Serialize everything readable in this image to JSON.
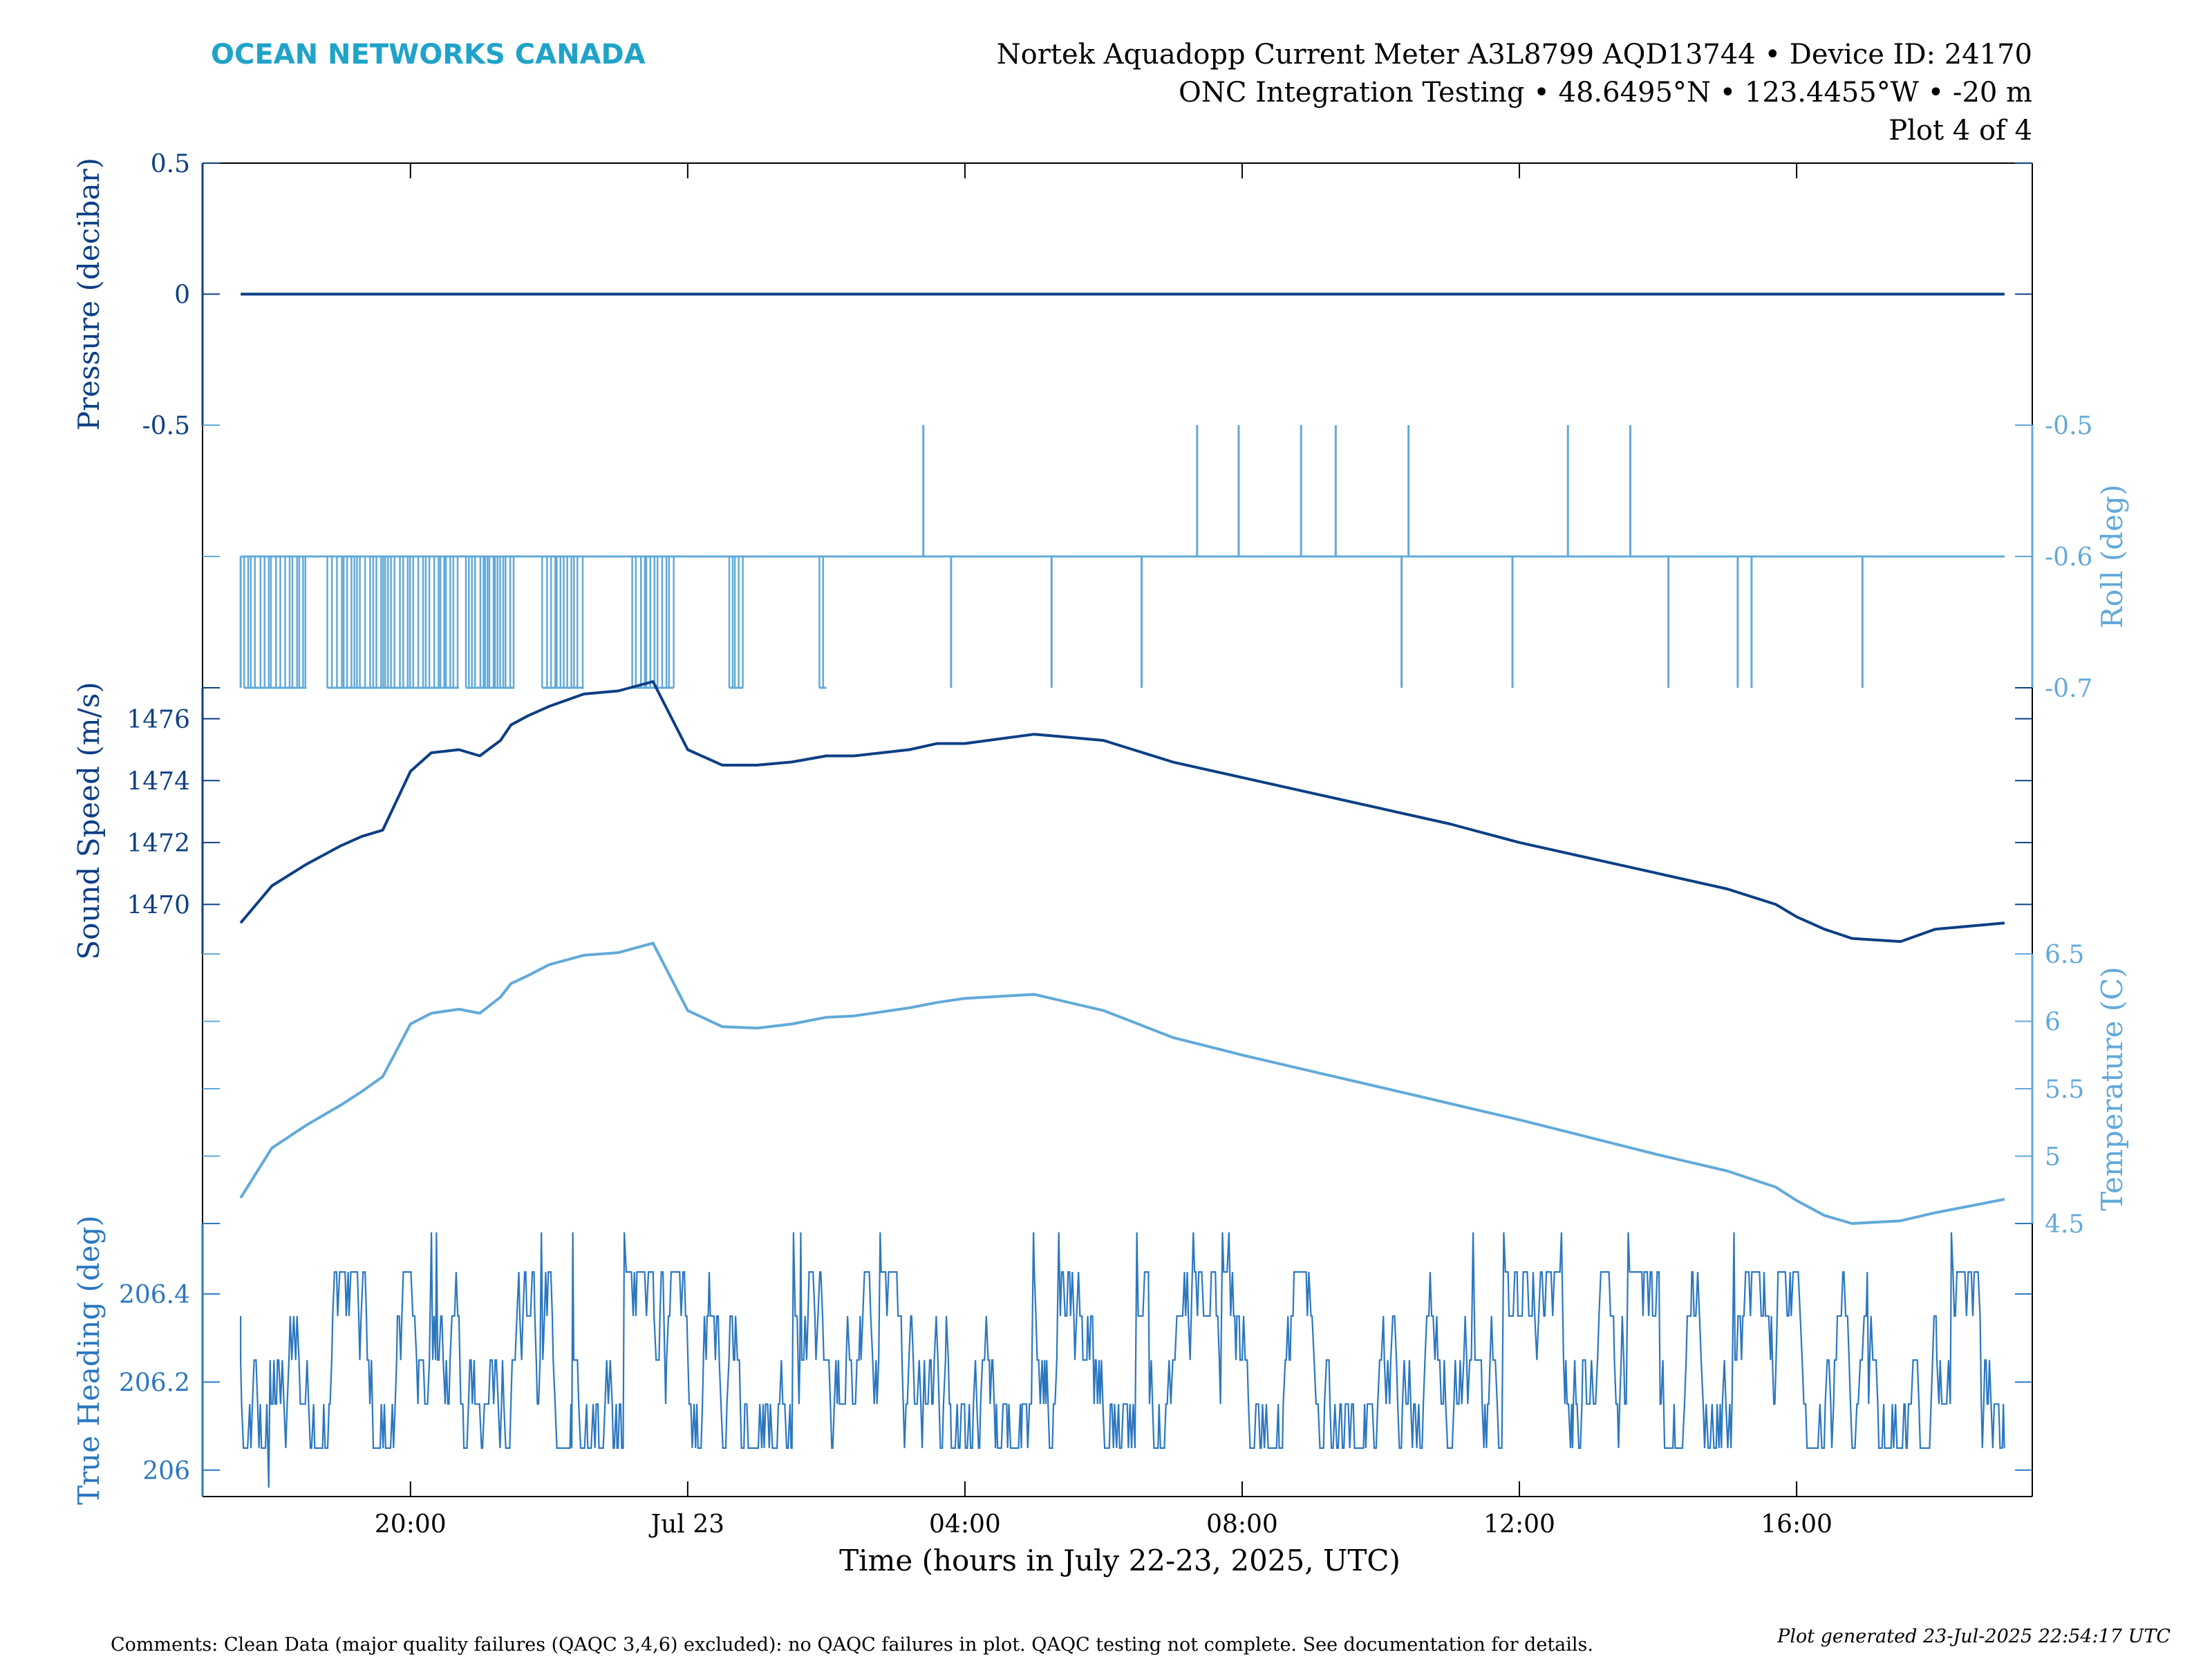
{
  "header": {
    "brand": "OCEAN NETWORKS CANADA",
    "line1": "Nortek Aquadopp Current Meter A3L8799 AQD13744 • Device ID: 24170",
    "line2": "ONC Integration Testing • 48.6495°N • 123.4455°W • -20 m",
    "line3": "Plot 4 of 4"
  },
  "footer": {
    "comments": "Comments: Clean Data (major quality failures (QAQC 3,4,6) excluded): no QAQC failures in plot. QAQC testing not complete. See documentation for details.",
    "generated": "Plot generated 23-Jul-2025 22:54:17 UTC"
  },
  "colors": {
    "dark": "#0d3f85",
    "mid": "#2b77c0",
    "light": "#62a9d9",
    "brand": "#1fa3c8",
    "frame": "#000000"
  },
  "chart_data": {
    "type": "line",
    "xlabel": "Time (hours in July 22-23, 2025, UTC)",
    "x_ticks": [
      "20:00",
      "Jul 23",
      "04:00",
      "08:00",
      "12:00",
      "16:00"
    ],
    "x_tick_hours": [
      20,
      24,
      28,
      32,
      36,
      40
    ],
    "x_range_hours": [
      17,
      43.4
    ],
    "panels": [
      {
        "name": "pressure",
        "ylabel": "Pressure (decibar)",
        "axis_side": "left",
        "ylim": [
          -0.5,
          0.5
        ],
        "y_ticks": [
          "0.5",
          "0",
          "-0.5"
        ],
        "y_tick_values": [
          0.5,
          0,
          -0.5
        ],
        "series": [
          {
            "x": [
              17.55,
              43.0
            ],
            "y": [
              0,
              0
            ]
          }
        ]
      },
      {
        "name": "roll",
        "ylabel": "Roll (deg)",
        "axis_side": "right",
        "ylim": [
          -0.7,
          -0.5
        ],
        "y_ticks": [
          "-0.5",
          "-0.6",
          "-0.7"
        ],
        "y_tick_values": [
          -0.5,
          -0.6,
          -0.7
        ],
        "baseline": -0.6,
        "up_spike_hours": [
          27.4,
          31.35,
          31.95,
          32.85,
          33.35,
          34.4,
          36.7,
          37.6
        ],
        "down_spike_hours": [
          27.8,
          29.25,
          30.55,
          34.3,
          35.9,
          38.15,
          39.15,
          39.35,
          40.95
        ],
        "dense_low_ranges": [
          [
            17.6,
            18.5
          ],
          [
            18.8,
            20.7
          ],
          [
            20.8,
            21.5
          ],
          [
            21.9,
            22.5
          ],
          [
            23.2,
            23.8
          ],
          [
            24.6,
            24.8
          ],
          [
            25.9,
            26.0
          ]
        ]
      },
      {
        "name": "sound_speed",
        "ylabel": "Sound Speed (m/s)",
        "axis_side": "left",
        "ylim": [
          1468.4,
          1477.0
        ],
        "y_ticks": [
          "1476",
          "1474",
          "1472",
          "1470"
        ],
        "y_tick_values": [
          1476,
          1474,
          1472,
          1470
        ],
        "series": [
          {
            "x": [
              17.55,
              18.0,
              18.5,
              19.0,
              19.3,
              19.6,
              20.0,
              20.3,
              20.7,
              21.0,
              21.3,
              21.45,
              21.7,
              22.0,
              22.5,
              23.0,
              23.5,
              24.0,
              24.5,
              25.0,
              25.5,
              26.0,
              26.4,
              26.8,
              27.2,
              27.6,
              28.0,
              29.0,
              30.0,
              31.0,
              32.0,
              33.0,
              34.0,
              35.0,
              36.0,
              37.0,
              38.0,
              39.0,
              39.7,
              40.0,
              40.4,
              40.8,
              41.5,
              42.0,
              42.5,
              43.0
            ],
            "y": [
              1469.4,
              1470.6,
              1471.3,
              1471.9,
              1472.2,
              1472.4,
              1474.3,
              1474.9,
              1475.0,
              1474.8,
              1475.3,
              1475.8,
              1476.1,
              1476.4,
              1476.8,
              1476.9,
              1477.2,
              1475.0,
              1474.5,
              1474.5,
              1474.6,
              1474.8,
              1474.8,
              1474.9,
              1475.0,
              1475.2,
              1475.2,
              1475.5,
              1475.3,
              1474.6,
              1474.1,
              1473.6,
              1473.1,
              1472.6,
              1472.0,
              1471.5,
              1471.0,
              1470.5,
              1470.0,
              1469.6,
              1469.2,
              1468.9,
              1468.8,
              1469.2,
              1469.3,
              1469.4
            ]
          }
        ]
      },
      {
        "name": "temperature",
        "ylabel": "Temperature (C)",
        "axis_side": "right",
        "ylim": [
          4.5,
          6.5
        ],
        "y_ticks": [
          "6.5",
          "6",
          "5.5",
          "5",
          "4.5"
        ],
        "y_tick_values": [
          6.5,
          6,
          5.5,
          5,
          4.5
        ],
        "series": [
          {
            "x": [
              17.55,
              18.0,
              18.5,
              19.0,
              19.3,
              19.6,
              20.0,
              20.3,
              20.7,
              21.0,
              21.3,
              21.45,
              21.7,
              22.0,
              22.5,
              23.0,
              23.5,
              24.0,
              24.5,
              25.0,
              25.5,
              26.0,
              26.4,
              26.8,
              27.2,
              27.6,
              28.0,
              29.0,
              30.0,
              31.0,
              32.0,
              33.0,
              34.0,
              35.0,
              36.0,
              37.0,
              38.0,
              39.0,
              39.7,
              40.0,
              40.4,
              40.8,
              41.5,
              42.0,
              42.5,
              43.0
            ],
            "y": [
              4.69,
              5.06,
              5.23,
              5.38,
              5.48,
              5.59,
              5.98,
              6.06,
              6.09,
              6.06,
              6.18,
              6.28,
              6.34,
              6.42,
              6.49,
              6.51,
              6.58,
              6.08,
              5.96,
              5.95,
              5.98,
              6.03,
              6.04,
              6.07,
              6.1,
              6.14,
              6.17,
              6.2,
              6.08,
              5.88,
              5.75,
              5.63,
              5.51,
              5.39,
              5.27,
              5.14,
              5.01,
              4.89,
              4.77,
              4.67,
              4.56,
              4.5,
              4.52,
              4.58,
              4.63,
              4.68
            ]
          }
        ]
      },
      {
        "name": "true_heading",
        "ylabel": "True Heading (deg)",
        "axis_side": "left",
        "ylim": [
          205.94,
          206.56
        ],
        "y_ticks": [
          "206.4",
          "206.2",
          "206"
        ],
        "y_tick_values": [
          206.4,
          206.2,
          206
        ],
        "levels": [
          205.96,
          206.05,
          206.15,
          206.25,
          206.35,
          206.45,
          206.54
        ],
        "center": 206.3,
        "x_range_hours": [
          17.55,
          43.0
        ],
        "note": "noisy, values mostly between 206.1 and 206.45"
      }
    ]
  }
}
